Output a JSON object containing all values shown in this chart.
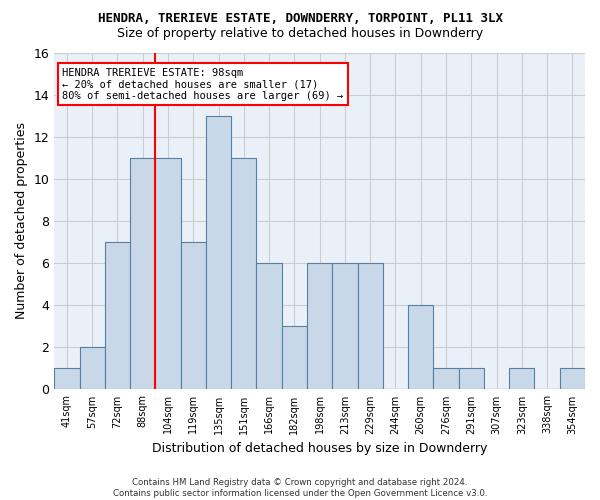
{
  "title": "HENDRA, TRERIEVE ESTATE, DOWNDERRY, TORPOINT, PL11 3LX",
  "subtitle": "Size of property relative to detached houses in Downderry",
  "xlabel": "Distribution of detached houses by size in Downderry",
  "ylabel": "Number of detached properties",
  "bar_values": [
    1,
    2,
    7,
    11,
    11,
    7,
    13,
    11,
    6,
    3,
    6,
    6,
    6,
    0,
    4,
    1,
    1,
    0,
    1,
    0,
    1
  ],
  "bar_labels": [
    "41sqm",
    "57sqm",
    "72sqm",
    "88sqm",
    "104sqm",
    "119sqm",
    "135sqm",
    "151sqm",
    "166sqm",
    "182sqm",
    "198sqm",
    "213sqm",
    "229sqm",
    "244sqm",
    "260sqm",
    "276sqm",
    "291sqm",
    "307sqm",
    "323sqm",
    "338sqm",
    "354sqm"
  ],
  "bar_color": "#c8d8e8",
  "bar_edge_color": "#5580a0",
  "ylim": [
    0,
    16
  ],
  "yticks": [
    0,
    2,
    4,
    6,
    8,
    10,
    12,
    14,
    16
  ],
  "grid_color": "#cccccc",
  "background_color": "#eaf0f8",
  "annotation_text": "HENDRA TRERIEVE ESTATE: 98sqm\n← 20% of detached houses are smaller (17)\n80% of semi-detached houses are larger (69) →",
  "vline_x": 3.5,
  "footer_line1": "Contains HM Land Registry data © Crown copyright and database right 2024.",
  "footer_line2": "Contains public sector information licensed under the Open Government Licence v3.0."
}
